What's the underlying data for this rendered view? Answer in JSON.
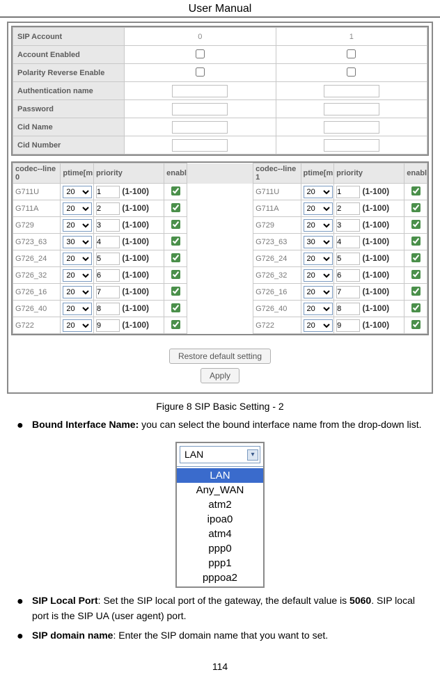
{
  "header": "User Manual",
  "sip_table": {
    "rows": [
      {
        "label": "SIP Account",
        "kind": "text",
        "v0": "0",
        "v1": "1"
      },
      {
        "label": "Account Enabled",
        "kind": "checkbox"
      },
      {
        "label": "Polarity Reverse Enable",
        "kind": "checkbox"
      },
      {
        "label": "Authentication name",
        "kind": "input"
      },
      {
        "label": "Password",
        "kind": "input"
      },
      {
        "label": "Cid Name",
        "kind": "input"
      },
      {
        "label": "Cid Number",
        "kind": "input"
      }
    ]
  },
  "codec_headers": {
    "line0": "codec--line 0",
    "line1": "codec--line 1",
    "ptime": "ptime[ms]",
    "priority": "priority",
    "enable": "enable"
  },
  "range_label": "(1-100)",
  "ptime_options": [
    "20",
    "30"
  ],
  "codecs": [
    {
      "name": "G711U",
      "ptime": "20",
      "prio": "1"
    },
    {
      "name": "G711A",
      "ptime": "20",
      "prio": "2"
    },
    {
      "name": "G729",
      "ptime": "20",
      "prio": "3"
    },
    {
      "name": "G723_63",
      "ptime": "30",
      "prio": "4"
    },
    {
      "name": "G726_24",
      "ptime": "20",
      "prio": "5"
    },
    {
      "name": "G726_32",
      "ptime": "20",
      "prio": "6"
    },
    {
      "name": "G726_16",
      "ptime": "20",
      "prio": "7"
    },
    {
      "name": "G726_40",
      "ptime": "20",
      "prio": "8"
    },
    {
      "name": "G722",
      "ptime": "20",
      "prio": "9"
    }
  ],
  "buttons": {
    "restore": "Restore default setting",
    "apply": "Apply"
  },
  "figure_caption": "Figure 8 SIP Basic Setting - 2",
  "bullets": [
    {
      "bold": "Bound Interface Name:",
      "rest": " you can select the bound interface name from the drop-down list."
    },
    {
      "bold": "SIP Local Port",
      "rest": ": Set the SIP local port of the gateway, the default value is ",
      "bold2": "5060",
      "rest2": ". SIP local port is the SIP UA (user agent) port."
    },
    {
      "bold": "SIP domain name",
      "rest": ": Enter the SIP domain name that you want to set."
    }
  ],
  "dropdown": {
    "selected": "LAN",
    "items": [
      "LAN",
      "Any_WAN",
      "atm2",
      "ipoa0",
      "atm4",
      "ppp0",
      "ppp1",
      "pppoa2"
    ]
  },
  "page_number": "114"
}
